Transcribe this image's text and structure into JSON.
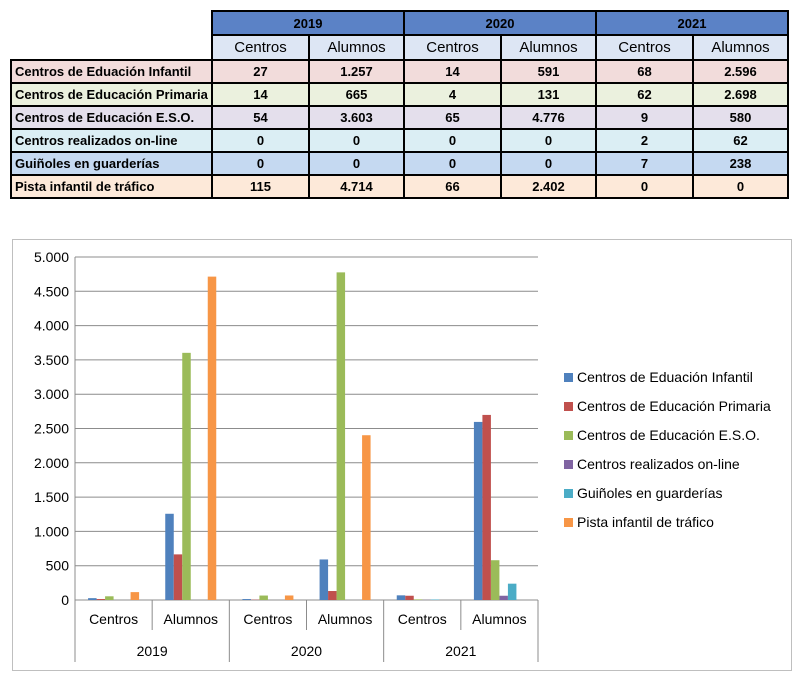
{
  "table": {
    "years": [
      "2019",
      "2020",
      "2021"
    ],
    "subheaders": [
      "Centros",
      "Alumnos"
    ],
    "rows": [
      {
        "label": "Centros de Eduación Infantil",
        "bg": "#f2dcdb",
        "values": [
          "27",
          "1.257",
          "14",
          "591",
          "68",
          "2.596"
        ]
      },
      {
        "label": "Centros de Educación Primaria",
        "bg": "#ebf1de",
        "values": [
          "14",
          "665",
          "4",
          "131",
          "62",
          "2.698"
        ]
      },
      {
        "label": "Centros de Educación E.S.O.",
        "bg": "#e4dfec",
        "values": [
          "54",
          "3.603",
          "65",
          "4.776",
          "9",
          "580"
        ]
      },
      {
        "label": "Centros realizados on-line",
        "bg": "#dbeef4",
        "values": [
          "0",
          "0",
          "0",
          "0",
          "2",
          "62"
        ]
      },
      {
        "label": "Guiñoles en guarderías",
        "bg": "#c5d9f1",
        "values": [
          "0",
          "0",
          "0",
          "0",
          "7",
          "238"
        ]
      },
      {
        "label": "Pista infantil de tráfico",
        "bg": "#fde9d9",
        "values": [
          "115",
          "4.714",
          "66",
          "2.402",
          "0",
          "0"
        ]
      }
    ]
  },
  "chart_data": {
    "type": "bar",
    "categories": [
      "Centros",
      "Alumnos",
      "Centros",
      "Alumnos",
      "Centros",
      "Alumnos"
    ],
    "groups": [
      "2019",
      "2020",
      "2021"
    ],
    "ylim": [
      0,
      5000
    ],
    "ytick_values": [
      0,
      500,
      1000,
      1500,
      2000,
      2500,
      3000,
      3500,
      4000,
      4500,
      5000
    ],
    "ytick_labels": [
      "0",
      "500",
      "1.000",
      "1.500",
      "2.000",
      "2.500",
      "3.000",
      "3.500",
      "4.000",
      "4.500",
      "5.000"
    ],
    "grid": true,
    "legend_position": "right",
    "series": [
      {
        "name": "Centros de Eduación Infantil",
        "color": "#4f81bd",
        "values": [
          27,
          1257,
          14,
          591,
          68,
          2596
        ]
      },
      {
        "name": "Centros de Educación Primaria",
        "color": "#c0504d",
        "values": [
          14,
          665,
          4,
          131,
          62,
          2698
        ]
      },
      {
        "name": "Centros de Educación E.S.O.",
        "color": "#9bbb59",
        "values": [
          54,
          3603,
          65,
          4776,
          9,
          580
        ]
      },
      {
        "name": "Centros realizados on-line",
        "color": "#8064a2",
        "values": [
          0,
          0,
          0,
          0,
          2,
          62
        ]
      },
      {
        "name": "Guiñoles en guarderías",
        "color": "#4bacc6",
        "values": [
          0,
          0,
          0,
          0,
          7,
          238
        ]
      },
      {
        "name": "Pista infantil de tráfico",
        "color": "#f79646",
        "values": [
          115,
          4714,
          66,
          2402,
          0,
          0
        ]
      }
    ]
  }
}
